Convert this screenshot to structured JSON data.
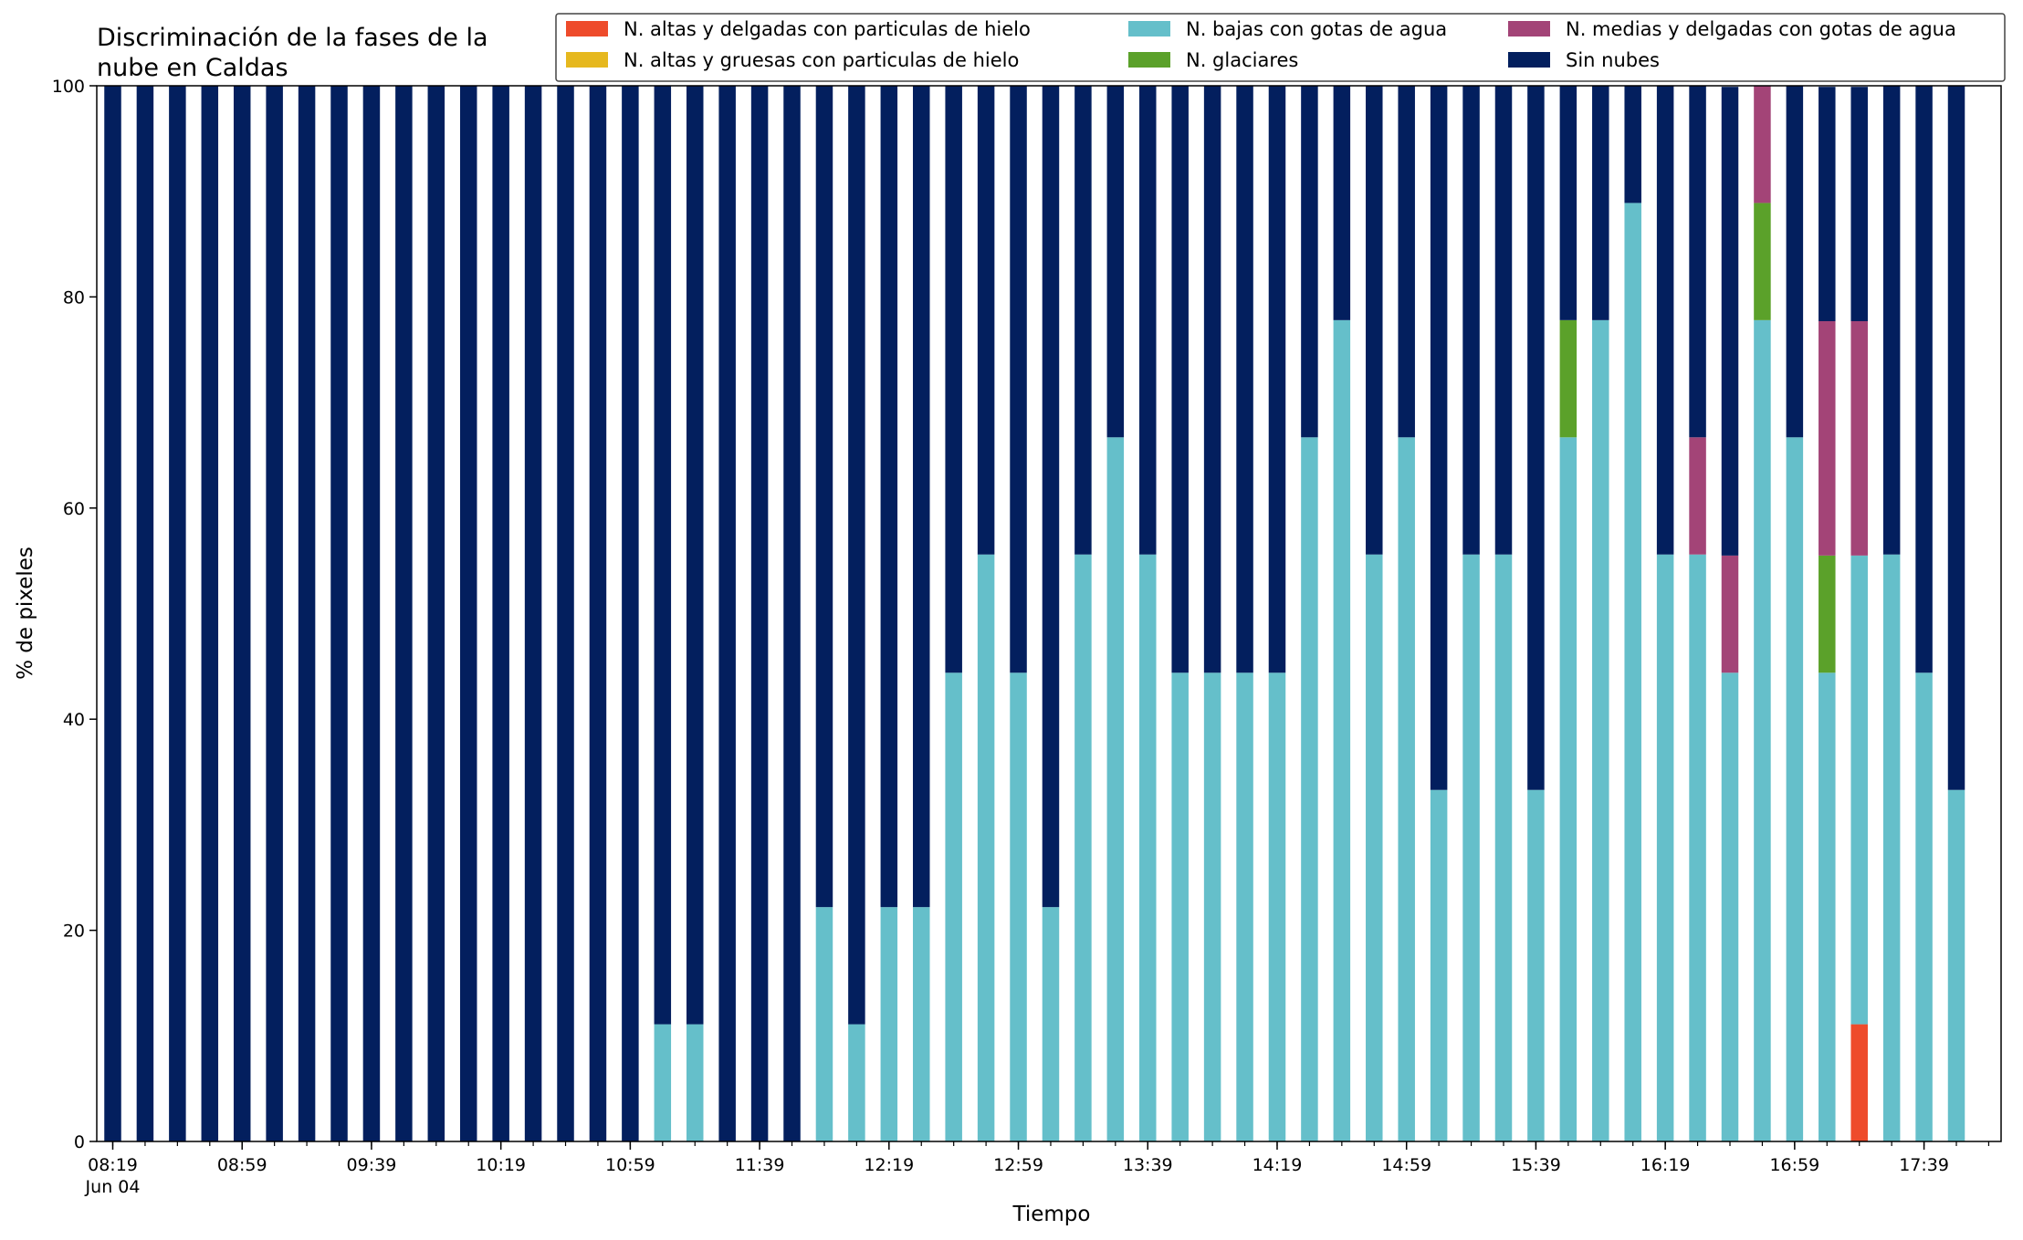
{
  "chart_data": {
    "type": "bar",
    "stacked": true,
    "title": "Discriminación de la fases de la\nnube en Caldas",
    "xlabel": "Tiempo",
    "ylabel": "% de pixeles",
    "ylim": [
      0,
      100
    ],
    "yticks": [
      0,
      20,
      40,
      60,
      80,
      100
    ],
    "grid": false,
    "legend_position": "top-right",
    "x_tick_labels": [
      "08:19\nJun 04",
      "08:59",
      "09:39",
      "10:19",
      "10:59",
      "11:39",
      "12:19",
      "12:59",
      "13:39",
      "14:19",
      "14:59",
      "15:39",
      "16:19",
      "16:59",
      "17:39"
    ],
    "categories": [
      "08:19",
      "08:29",
      "08:39",
      "08:49",
      "08:59",
      "09:09",
      "09:19",
      "09:29",
      "09:39",
      "09:49",
      "09:59",
      "10:09",
      "10:19",
      "10:29",
      "10:39",
      "10:49",
      "10:59",
      "11:09",
      "11:19",
      "11:29",
      "11:39",
      "11:49",
      "11:59",
      "12:09",
      "12:19",
      "12:29",
      "12:39",
      "12:49",
      "12:59",
      "13:09",
      "13:19",
      "13:29",
      "13:39",
      "13:49",
      "13:59",
      "14:09",
      "14:19",
      "14:29",
      "14:39",
      "14:49",
      "14:59",
      "15:09",
      "15:19",
      "15:29",
      "15:39",
      "15:49",
      "15:59",
      "16:09",
      "16:19",
      "16:29",
      "16:39",
      "16:49",
      "16:59",
      "17:09",
      "17:19",
      "17:29",
      "17:39",
      "17:49"
    ],
    "series": [
      {
        "name": "N. altas y delgadas con particulas de hielo",
        "color": "#ee4b2b",
        "values": [
          0,
          0,
          0,
          0,
          0,
          0,
          0,
          0,
          0,
          0,
          0,
          0,
          0,
          0,
          0,
          0,
          0,
          0,
          0,
          0,
          0,
          0,
          0,
          0,
          0,
          0,
          0,
          0,
          0,
          0,
          0,
          0,
          0,
          0,
          0,
          0,
          0,
          0,
          0,
          0,
          0,
          0,
          0,
          0,
          0,
          0,
          0,
          0,
          0,
          0,
          0,
          0,
          0,
          0,
          11.1,
          0,
          0,
          0
        ]
      },
      {
        "name": "N. altas y gruesas con particulas de hielo",
        "color": "#e6b81e",
        "values": [
          0,
          0,
          0,
          0,
          0,
          0,
          0,
          0,
          0,
          0,
          0,
          0,
          0,
          0,
          0,
          0,
          0,
          0,
          0,
          0,
          0,
          0,
          0,
          0,
          0,
          0,
          0,
          0,
          0,
          0,
          0,
          0,
          0,
          0,
          0,
          0,
          0,
          0,
          0,
          0,
          0,
          0,
          0,
          0,
          0,
          0,
          0,
          0,
          0,
          0,
          0,
          0,
          0,
          0,
          0,
          0,
          0,
          0
        ]
      },
      {
        "name": "N. bajas con gotas de agua",
        "color": "#65bfca",
        "values": [
          0,
          0,
          0,
          0,
          0,
          0,
          0,
          0,
          0,
          0,
          0,
          0,
          0,
          0,
          0,
          0,
          0,
          11.1,
          11.1,
          0,
          0,
          0,
          22.2,
          11.1,
          22.2,
          22.2,
          44.4,
          55.6,
          44.4,
          22.2,
          55.6,
          66.7,
          55.6,
          44.4,
          44.4,
          44.4,
          44.4,
          66.7,
          77.8,
          55.6,
          66.7,
          33.3,
          55.6,
          55.6,
          33.3,
          66.7,
          77.8,
          88.9,
          55.6,
          55.6,
          44.4,
          77.8,
          66.7,
          44.4,
          44.4,
          55.6,
          44.4,
          33.3
        ]
      },
      {
        "name": "N. glaciares",
        "color": "#5ba12a",
        "values": [
          0,
          0,
          0,
          0,
          0,
          0,
          0,
          0,
          0,
          0,
          0,
          0,
          0,
          0,
          0,
          0,
          0,
          0,
          0,
          0,
          0,
          0,
          0,
          0,
          0,
          0,
          0,
          0,
          0,
          0,
          0,
          0,
          0,
          0,
          0,
          0,
          0,
          0,
          0,
          0,
          0,
          0,
          0,
          0,
          0,
          11.1,
          0,
          0,
          0,
          0,
          0,
          11.1,
          0,
          11.1,
          0,
          0,
          0,
          0
        ]
      },
      {
        "name": "N. medias y delgadas con gotas de agua",
        "color": "#a34477",
        "values": [
          0,
          0,
          0,
          0,
          0,
          0,
          0,
          0,
          0,
          0,
          0,
          0,
          0,
          0,
          0,
          0,
          0,
          0,
          0,
          0,
          0,
          0,
          0,
          0,
          0,
          0,
          0,
          0,
          0,
          0,
          0,
          0,
          0,
          0,
          0,
          0,
          0,
          0,
          0,
          0,
          0,
          0,
          0,
          0,
          0,
          0,
          0,
          0,
          0,
          11.1,
          11.1,
          11.1,
          0,
          22.2,
          22.2,
          0,
          0,
          0
        ]
      },
      {
        "name": "Sin nubes",
        "color": "#031f5e",
        "values": [
          100,
          100,
          100,
          100,
          100,
          100,
          100,
          100,
          100,
          100,
          100,
          100,
          100,
          100,
          100,
          100,
          100,
          88.9,
          88.9,
          100,
          100,
          100,
          77.8,
          88.9,
          77.8,
          77.8,
          55.6,
          44.4,
          55.6,
          77.8,
          44.4,
          33.3,
          44.4,
          55.6,
          55.6,
          55.6,
          55.6,
          33.3,
          22.2,
          44.4,
          33.3,
          66.7,
          44.4,
          44.4,
          66.7,
          22.2,
          22.2,
          11.1,
          44.4,
          33.3,
          44.4,
          0,
          33.3,
          22.2,
          22.2,
          44.4,
          55.6,
          66.7
        ]
      }
    ]
  }
}
